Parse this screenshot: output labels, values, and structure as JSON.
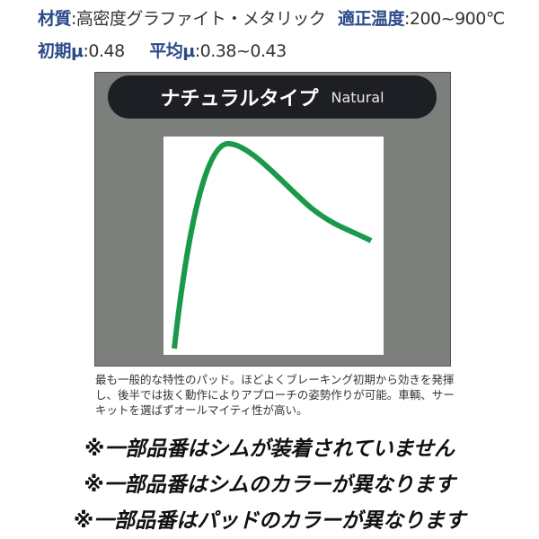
{
  "specs": {
    "material_label": "材質",
    "material_value": ":高密度グラファイト・メタリック",
    "temp_label": "適正温度",
    "temp_value": ":200~900℃",
    "initial_mu_label": "初期μ",
    "initial_mu_value": ":0.48",
    "avg_mu_label": "平均μ",
    "avg_mu_value": ":0.38~0.43"
  },
  "type_header": {
    "jp": "ナチュラルタイプ",
    "en": "Natural"
  },
  "curve_color": "#1a9a48",
  "description": "最も一般的な特性のパッド。ほどよくブレーキング初期から効きを発揮し、後半では抜く動作によりアプローチの姿勢作りが可能。車輌、サーキットを選ばずオールマイティ性が高い。",
  "notes": [
    "※一部品番はシムが装着されていません",
    "※一部品番はシムのカラーが異なります",
    "※一部品番はパッドのカラーが異なります"
  ]
}
